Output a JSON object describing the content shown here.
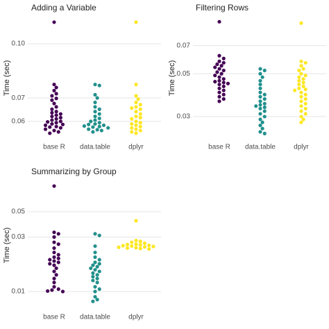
{
  "chart_data": [
    {
      "type": "beeswarm",
      "title": "Adding a Variable",
      "y_label": "Time (sec)",
      "log_scale": true,
      "grid": true,
      "ylim": [
        0.0535,
        0.119
      ],
      "yticks": [
        0.06,
        0.07,
        {
          "value": 0.1,
          "label": "0.10"
        }
      ],
      "groups": [
        {
          "name": "base R",
          "color": "#440154",
          "values": [
            0.1153,
            0.0765,
            0.075,
            0.0735,
            0.072,
            0.071,
            0.0698,
            0.069,
            0.0675,
            0.066,
            0.065,
            0.064,
            0.0635,
            0.063,
            0.0625,
            0.062,
            0.0615,
            0.061,
            0.0605,
            0.06,
            0.0598,
            0.0595,
            0.059,
            0.0588,
            0.0585,
            0.058,
            0.0578,
            0.0575,
            0.057,
            0.0565,
            0.056,
            0.0555
          ]
        },
        {
          "name": "data.table",
          "color": "#21908C",
          "values": [
            0.0765,
            0.076,
            0.0715,
            0.07,
            0.068,
            0.066,
            0.065,
            0.064,
            0.063,
            0.062,
            0.0612,
            0.0605,
            0.06,
            0.0595,
            0.059,
            0.0588,
            0.0585,
            0.0582,
            0.058,
            0.0578,
            0.0575,
            0.057,
            0.0568,
            0.0565,
            0.056
          ]
        },
        {
          "name": "dplyr",
          "color": "#FDE725",
          "values": [
            0.1153,
            0.0765,
            0.071,
            0.0695,
            0.068,
            0.067,
            0.066,
            0.0655,
            0.065,
            0.064,
            0.063,
            0.062,
            0.0615,
            0.061,
            0.06,
            0.0595,
            0.059,
            0.0585,
            0.058,
            0.0575,
            0.057,
            0.0565,
            0.056,
            0.0555
          ]
        }
      ]
    },
    {
      "type": "beeswarm",
      "title": "Filtering Rows",
      "y_label": "Time (sec)",
      "log_scale": true,
      "grid": true,
      "ylim": [
        0.023,
        0.098
      ],
      "yticks": [
        0.03,
        0.05,
        0.07
      ],
      "groups": [
        {
          "name": "base R",
          "color": "#440154",
          "values": [
            0.093,
            0.062,
            0.06,
            0.058,
            0.057,
            0.056,
            0.055,
            0.054,
            0.053,
            0.052,
            0.051,
            0.05,
            0.049,
            0.048,
            0.047,
            0.046,
            0.0455,
            0.045,
            0.0445,
            0.044,
            0.043,
            0.042,
            0.041,
            0.04,
            0.039,
            0.038,
            0.037,
            0.036
          ]
        },
        {
          "name": "data.table",
          "color": "#21908C",
          "values": [
            0.053,
            0.052,
            0.05,
            0.048,
            0.046,
            0.044,
            0.042,
            0.04,
            0.039,
            0.038,
            0.037,
            0.036,
            0.035,
            0.0345,
            0.034,
            0.0335,
            0.033,
            0.032,
            0.031,
            0.03,
            0.029,
            0.028,
            0.027,
            0.026,
            0.025,
            0.0245
          ]
        },
        {
          "name": "dplyr",
          "color": "#FDE725",
          "values": [
            0.0915,
            0.058,
            0.057,
            0.055,
            0.053,
            0.052,
            0.05,
            0.049,
            0.048,
            0.047,
            0.046,
            0.045,
            0.044,
            0.043,
            0.042,
            0.0415,
            0.041,
            0.04,
            0.039,
            0.038,
            0.037,
            0.036,
            0.035,
            0.034,
            0.033,
            0.032,
            0.031,
            0.03,
            0.029,
            0.028
          ]
        }
      ]
    },
    {
      "type": "beeswarm",
      "title": "Summarizing by Group",
      "y_label": "Time (sec)",
      "log_scale": true,
      "grid": true,
      "ylim": [
        0.00705,
        0.0913
      ],
      "yticks": [
        0.01,
        0.03,
        0.05
      ],
      "groups": [
        {
          "name": "base R",
          "color": "#440154",
          "values": [
            0.0839,
            0.033,
            0.032,
            0.03,
            0.027,
            0.026,
            0.024,
            0.022,
            0.021,
            0.02,
            0.0195,
            0.019,
            0.0185,
            0.018,
            0.0175,
            0.017,
            0.016,
            0.015,
            0.014,
            0.013,
            0.012,
            0.011,
            0.0105,
            0.0103,
            0.0101,
            0.01
          ]
        },
        {
          "name": "data.table",
          "color": "#21908C",
          "values": [
            0.032,
            0.031,
            0.025,
            0.022,
            0.02,
            0.019,
            0.018,
            0.0175,
            0.017,
            0.0165,
            0.016,
            0.0155,
            0.015,
            0.0145,
            0.014,
            0.0135,
            0.013,
            0.0125,
            0.012,
            0.011,
            0.0105,
            0.01,
            0.009,
            0.0085,
            0.0082
          ]
        },
        {
          "name": "dplyr",
          "color": "#FDE725",
          "values": [
            0.0417,
            0.028,
            0.0275,
            0.027,
            0.0265,
            0.026,
            0.0258,
            0.0256,
            0.0254,
            0.0252,
            0.025,
            0.0248,
            0.0246,
            0.0244,
            0.0242,
            0.024,
            0.0238,
            0.0236
          ]
        }
      ]
    }
  ]
}
